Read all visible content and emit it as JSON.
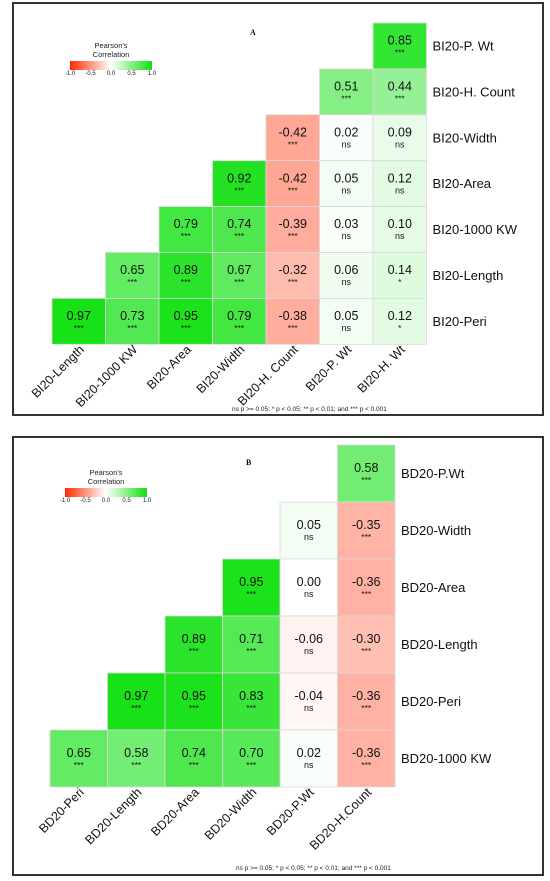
{
  "colors": {
    "negative": "#ff2a00",
    "zero": "#ffffff",
    "positive": "#10e010"
  },
  "chart_data": [
    {
      "type": "heatmap",
      "panel_label": "A",
      "legend": {
        "title_line1": "Pearson's",
        "title_line2": "Correlation",
        "ticks": [
          "-1.0",
          "-0.5",
          "0.0",
          "0.5",
          "1.0"
        ],
        "range": [
          -1,
          1
        ]
      },
      "x_labels": [
        "BI20-Length",
        "BI20-1000 KW",
        "BI20-Area",
        "BI20-Width",
        "BI20-H. Count",
        "BI20-P. Wt",
        "BI20-H. Wt"
      ],
      "y_labels": [
        "BI20-P. Wt",
        "BI20-H. Count",
        "BI20-Width",
        "BI20-Area",
        "BI20-1000 KW",
        "BI20-Length",
        "BI20-Peri"
      ],
      "cells": [
        [
          null,
          null,
          null,
          null,
          null,
          null,
          {
            "v": "0.85",
            "s": "***"
          }
        ],
        [
          null,
          null,
          null,
          null,
          null,
          {
            "v": "0.51",
            "s": "***"
          },
          {
            "v": "0.44",
            "s": "***"
          }
        ],
        [
          null,
          null,
          null,
          null,
          {
            "v": "-0.42",
            "s": "***"
          },
          {
            "v": "0.02",
            "s": "ns"
          },
          {
            "v": "0.09",
            "s": "ns"
          }
        ],
        [
          null,
          null,
          null,
          {
            "v": "0.92",
            "s": "***"
          },
          {
            "v": "-0.42",
            "s": "***"
          },
          {
            "v": "0.05",
            "s": "ns"
          },
          {
            "v": "0.12",
            "s": "ns"
          }
        ],
        [
          null,
          null,
          {
            "v": "0.79",
            "s": "***"
          },
          {
            "v": "0.74",
            "s": "***"
          },
          {
            "v": "-0.39",
            "s": "***"
          },
          {
            "v": "0.03",
            "s": "ns"
          },
          {
            "v": "0.10",
            "s": "ns"
          }
        ],
        [
          null,
          {
            "v": "0.65",
            "s": "***"
          },
          {
            "v": "0.89",
            "s": "***"
          },
          {
            "v": "0.67",
            "s": "***"
          },
          {
            "v": "-0.32",
            "s": "***"
          },
          {
            "v": "0.06",
            "s": "ns"
          },
          {
            "v": "0.14",
            "s": "*"
          }
        ],
        [
          {
            "v": "0.97",
            "s": "***"
          },
          {
            "v": "0.73",
            "s": "***"
          },
          {
            "v": "0.95",
            "s": "***"
          },
          {
            "v": "0.79",
            "s": "***"
          },
          {
            "v": "-0.38",
            "s": "***"
          },
          {
            "v": "0.05",
            "s": "ns"
          },
          {
            "v": "0.12",
            "s": "*"
          }
        ]
      ],
      "footnote": "ns p >= 0.05; * p < 0.05; ** p < 0.01; and *** p < 0.001"
    },
    {
      "type": "heatmap",
      "panel_label": "B",
      "legend": {
        "title_line1": "Pearson's",
        "title_line2": "Correlation",
        "ticks": [
          "-1.0",
          "-0.5",
          "0.0",
          "0.5",
          "1.0"
        ],
        "range": [
          -1,
          1
        ]
      },
      "x_labels": [
        "BD20-Peri",
        "BD20-Length",
        "BD20-Area",
        "BD20-Width",
        "BD20-P.Wt",
        "BD20-H.Count"
      ],
      "y_labels": [
        "BD20-P.Wt",
        "BD20-Width",
        "BD20-Area",
        "BD20-Length",
        "BD20-Peri",
        "BD20-1000 KW"
      ],
      "cells": [
        [
          null,
          null,
          null,
          null,
          null,
          {
            "v": "0.58",
            "s": "***"
          }
        ],
        [
          null,
          null,
          null,
          null,
          {
            "v": "0.05",
            "s": "ns"
          },
          {
            "v": "-0.35",
            "s": "***"
          }
        ],
        [
          null,
          null,
          null,
          {
            "v": "0.95",
            "s": "***"
          },
          {
            "v": "0.00",
            "s": "ns"
          },
          {
            "v": "-0.36",
            "s": "***"
          }
        ],
        [
          null,
          null,
          {
            "v": "0.89",
            "s": "***"
          },
          {
            "v": "0.71",
            "s": "***"
          },
          {
            "v": "-0.06",
            "s": "ns"
          },
          {
            "v": "-0.30",
            "s": "***"
          }
        ],
        [
          null,
          {
            "v": "0.97",
            "s": "***"
          },
          {
            "v": "0.95",
            "s": "***"
          },
          {
            "v": "0.83",
            "s": "***"
          },
          {
            "v": "-0.04",
            "s": "ns"
          },
          {
            "v": "-0.36",
            "s": "***"
          }
        ],
        [
          {
            "v": "0.65",
            "s": "***"
          },
          {
            "v": "0.58",
            "s": "***"
          },
          {
            "v": "0.74",
            "s": "***"
          },
          {
            "v": "0.70",
            "s": "***"
          },
          {
            "v": "0.02",
            "s": "ns"
          },
          {
            "v": "-0.36",
            "s": "***"
          }
        ]
      ],
      "footnote": "ns p >= 0.05; * p < 0.05; ** p < 0.01; and *** p < 0.001"
    }
  ]
}
